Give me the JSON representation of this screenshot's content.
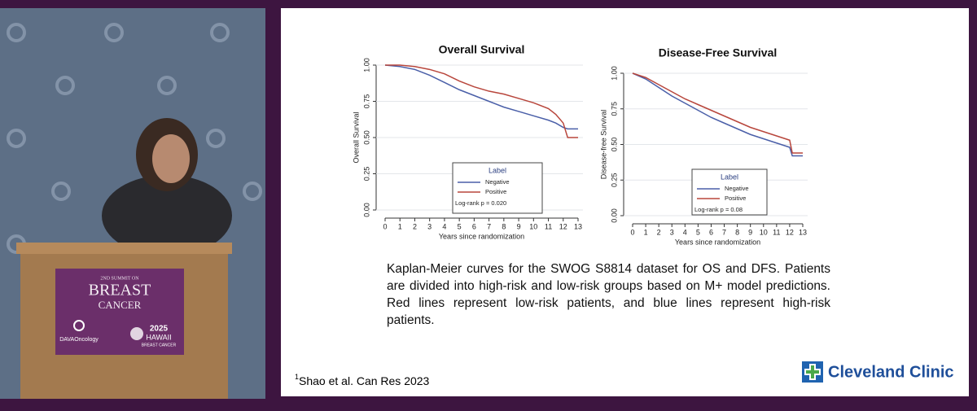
{
  "video": {
    "podium": {
      "line1": "2ND SUMMIT ON",
      "line2": "BREAST",
      "line3": "CANCER",
      "sponsor": "DAVAOncology",
      "year": "2025",
      "event": "HAWAII",
      "event_sub": "BREAST CANCER"
    }
  },
  "chart_data": [
    {
      "type": "line",
      "title": "Overall Survival",
      "xlabel": "Years since randomization",
      "ylabel": "Overall Survival",
      "x": [
        0,
        1,
        2,
        3,
        4,
        5,
        6,
        7,
        8,
        9,
        10,
        11,
        11.5,
        12,
        12.3,
        13
      ],
      "series": [
        {
          "name": "Negative",
          "color": "#4a5fa8",
          "values": [
            1.0,
            0.99,
            0.97,
            0.93,
            0.88,
            0.83,
            0.79,
            0.75,
            0.71,
            0.68,
            0.65,
            0.62,
            0.6,
            0.57,
            0.56,
            0.56
          ]
        },
        {
          "name": "Positive",
          "color": "#b8463c",
          "values": [
            1.0,
            1.0,
            0.99,
            0.97,
            0.94,
            0.89,
            0.85,
            0.82,
            0.8,
            0.77,
            0.74,
            0.7,
            0.66,
            0.6,
            0.5,
            0.5
          ]
        }
      ],
      "xlim": [
        0,
        13
      ],
      "xticks": [
        0,
        1,
        2,
        3,
        4,
        5,
        6,
        7,
        8,
        9,
        10,
        11,
        12,
        13
      ],
      "ylim": [
        0,
        1
      ],
      "yticks": [
        {
          "value": 0,
          "label": "0.00"
        },
        {
          "value": 0.25,
          "label": "0.25"
        },
        {
          "value": 0.5,
          "label": "0.50"
        },
        {
          "value": 0.75,
          "label": "0.75"
        },
        {
          "value": 1,
          "label": "1.00"
        }
      ],
      "grid": true,
      "legend": "bottom-center",
      "legend_title": "Label",
      "annotation": "Log-rank p = 0.020"
    },
    {
      "type": "line",
      "title": "Disease-Free Survival",
      "xlabel": "Years since randomization",
      "ylabel": "Disease-free Survival",
      "x": [
        0,
        1,
        2,
        3,
        4,
        5,
        6,
        7,
        8,
        9,
        10,
        11,
        12,
        12.2,
        13
      ],
      "series": [
        {
          "name": "Negative",
          "color": "#4a5fa8",
          "values": [
            1.0,
            0.96,
            0.9,
            0.84,
            0.79,
            0.74,
            0.69,
            0.65,
            0.61,
            0.57,
            0.54,
            0.51,
            0.48,
            0.42,
            0.42
          ]
        },
        {
          "name": "Positive",
          "color": "#b8463c",
          "values": [
            1.0,
            0.97,
            0.92,
            0.87,
            0.82,
            0.78,
            0.74,
            0.7,
            0.66,
            0.62,
            0.59,
            0.56,
            0.53,
            0.44,
            0.44
          ]
        }
      ],
      "xlim": [
        0,
        13
      ],
      "xticks": [
        0,
        1,
        2,
        3,
        4,
        5,
        6,
        7,
        8,
        9,
        10,
        11,
        12,
        13
      ],
      "ylim": [
        0,
        1
      ],
      "yticks": [
        {
          "value": 0,
          "label": "0.00"
        },
        {
          "value": 0.25,
          "label": "0.25"
        },
        {
          "value": 0.5,
          "label": "0.50"
        },
        {
          "value": 0.75,
          "label": "0.75"
        },
        {
          "value": 1,
          "label": "1.00"
        }
      ],
      "grid": true,
      "legend": "bottom-center",
      "legend_title": "Label",
      "annotation": "Log-rank p = 0.08"
    }
  ],
  "slide": {
    "caption": "Kaplan-Meier curves for the SWOG S8814 dataset for OS and DFS. Patients are divided into high-risk and low-risk groups based on M+ model predictions. Red lines represent low-risk patients, and blue lines represent high-risk patients.",
    "footnote_mark": "1",
    "footnote": "Shao et al. Can Res 2023",
    "logo": "Cleveland Clinic"
  }
}
